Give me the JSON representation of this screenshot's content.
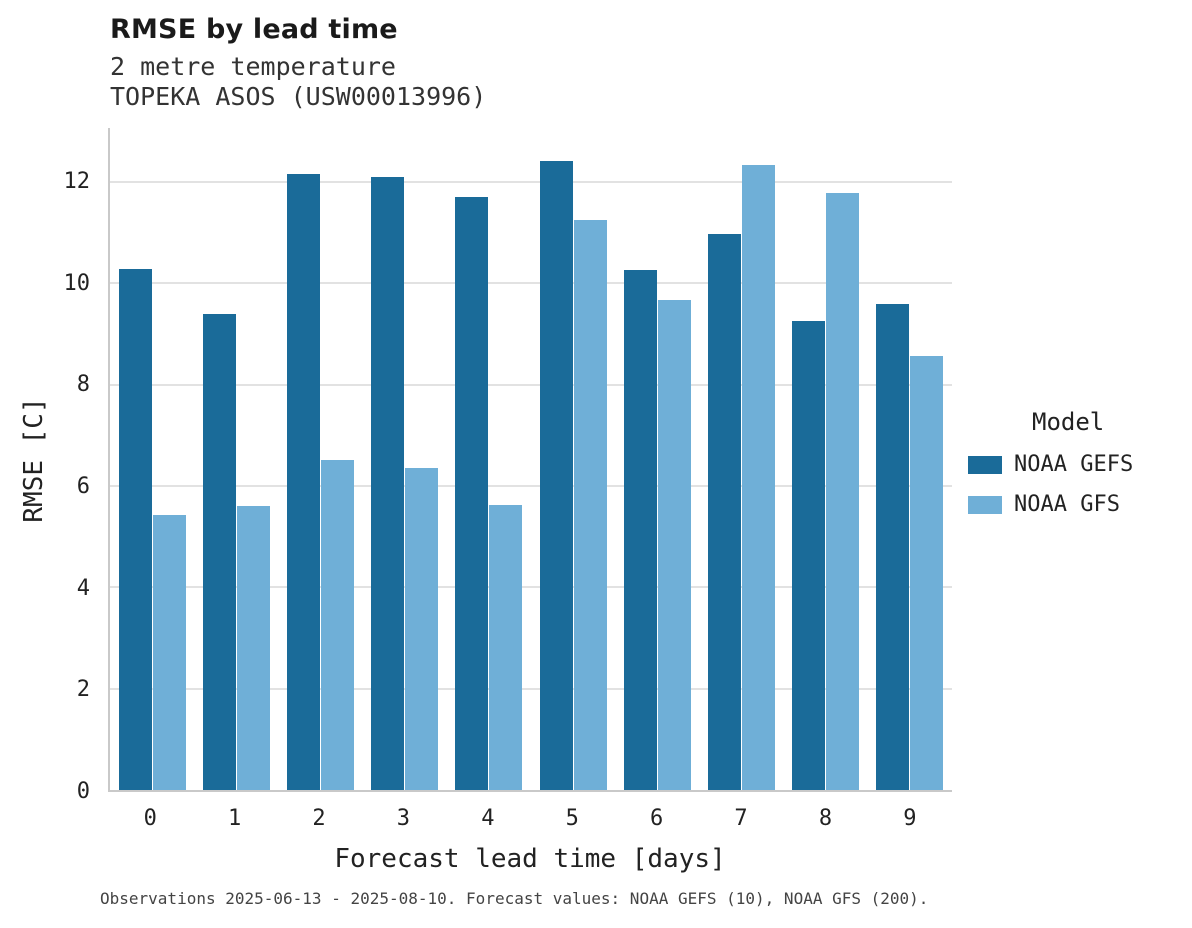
{
  "header": {
    "title": "RMSE by lead time",
    "subtitle_line1": "2 metre temperature",
    "subtitle_line2": "TOPEKA ASOS (USW00013996)"
  },
  "axes": {
    "x_label": "Forecast lead time [days]",
    "y_label": "RMSE [C]"
  },
  "legend": {
    "title": "Model",
    "entries": [
      {
        "label": "NOAA GEFS",
        "color": "#1a6b99"
      },
      {
        "label": "NOAA GFS",
        "color": "#6fafd7"
      }
    ]
  },
  "caption": "Observations 2025-06-13 - 2025-08-10. Forecast values: NOAA GEFS (10), NOAA GFS (200).",
  "chart_data": {
    "type": "bar",
    "title": "RMSE by lead time",
    "subtitle": [
      "2 metre temperature",
      "TOPEKA ASOS (USW00013996)"
    ],
    "xlabel": "Forecast lead time [days]",
    "ylabel": "RMSE [C]",
    "categories": [
      0,
      1,
      2,
      3,
      4,
      5,
      6,
      7,
      8,
      9
    ],
    "series": [
      {
        "name": "NOAA GEFS",
        "color": "#1a6b99",
        "values": [
          10.28,
          9.4,
          12.15,
          12.1,
          11.7,
          12.4,
          10.26,
          10.97,
          9.25,
          9.58
        ]
      },
      {
        "name": "NOAA GFS",
        "color": "#6fafd7",
        "values": [
          5.42,
          5.6,
          6.52,
          6.35,
          5.63,
          11.25,
          9.66,
          12.34,
          11.78,
          8.57
        ]
      }
    ],
    "ylim": [
      0,
      13.06
    ],
    "yticks": [
      0,
      2,
      4,
      6,
      8,
      10,
      12
    ],
    "grid": "horizontal",
    "legend_title": "Model",
    "legend_position": "right"
  }
}
